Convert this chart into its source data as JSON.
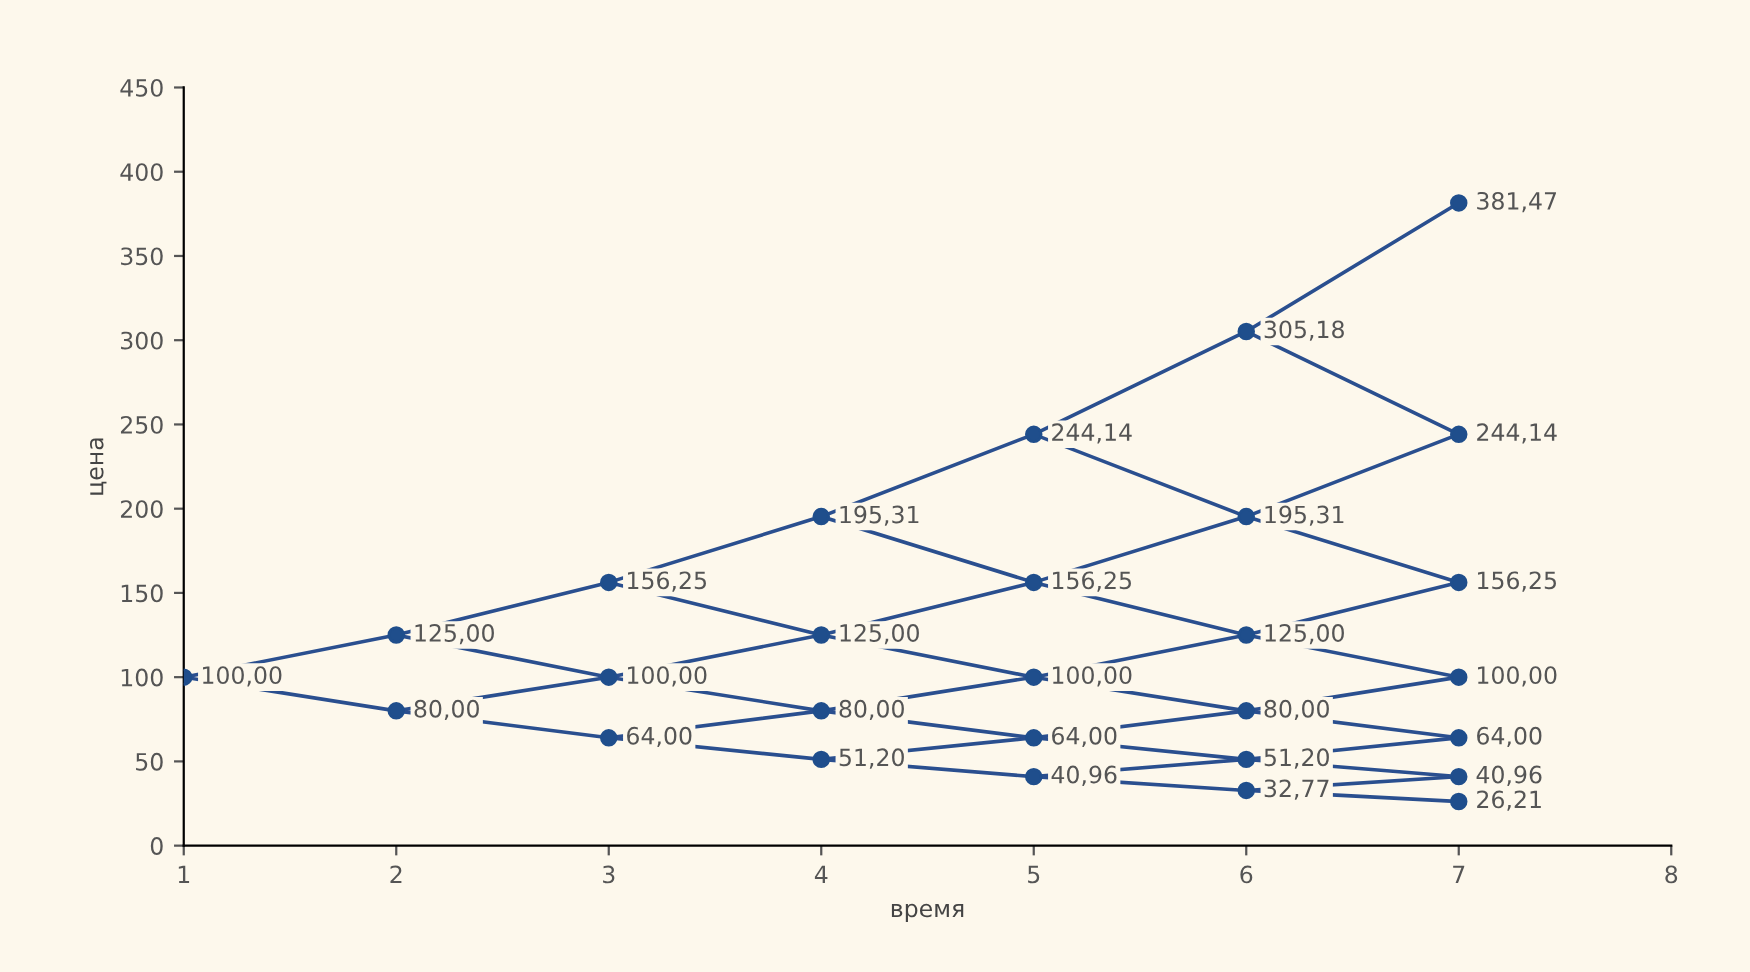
{
  "chart_data": {
    "type": "line",
    "xlabel": "время",
    "ylabel": "цена",
    "xlim": [
      1,
      8
    ],
    "xticks": [
      1,
      2,
      3,
      4,
      5,
      6,
      7,
      8
    ],
    "ylim": [
      0,
      450
    ],
    "yticks": [
      0,
      50,
      100,
      150,
      200,
      250,
      300,
      350,
      400,
      450
    ],
    "grid": false,
    "legend": false,
    "line_style": "solid",
    "marker": "none",
    "series": [
      {
        "color": "#2a4f8f",
        "x": [
          1,
          2,
          3,
          4,
          5,
          6,
          7
        ],
        "values": [
          100,
          125,
          156.25,
          195.31,
          244.14,
          305.18,
          381.47
        ]
      },
      {
        "color": "#2a4f8f",
        "x": [
          2,
          3,
          4,
          5,
          6,
          7
        ],
        "values": [
          80,
          100,
          125,
          156.25,
          195.31,
          244.14
        ]
      },
      {
        "color": "#2a4f8f",
        "x": [
          3,
          4,
          5,
          6,
          7
        ],
        "values": [
          64,
          80,
          100,
          125,
          156.25
        ]
      },
      {
        "color": "#2a4f8f",
        "x": [
          4,
          5,
          6,
          7
        ],
        "values": [
          51.2,
          64,
          80,
          100
        ]
      },
      {
        "color": "#2a4f8f",
        "x": [
          5,
          6,
          7
        ],
        "values": [
          40.96,
          51.2,
          64
        ]
      },
      {
        "color": "#2a4f8f",
        "x": [
          6,
          7
        ],
        "values": [
          32.77,
          40.96
        ]
      },
      {
        "color": "#2a4f8f",
        "x": [
          1,
          2,
          3,
          4,
          5,
          6,
          7
        ],
        "values": [
          100,
          80,
          64,
          51.2,
          40.96,
          32.77,
          26.21
        ]
      },
      {
        "color": "#2a4f8f",
        "x": [
          2,
          3,
          4,
          5,
          6,
          7
        ],
        "values": [
          125,
          100,
          80,
          64,
          51.2,
          40.96
        ]
      },
      {
        "color": "#2a4f8f",
        "x": [
          3,
          4,
          5,
          6,
          7
        ],
        "values": [
          156.25,
          125,
          100,
          80,
          64
        ]
      },
      {
        "color": "#2a4f8f",
        "x": [
          4,
          5,
          6,
          7
        ],
        "values": [
          195.31,
          156.25,
          125,
          100
        ]
      },
      {
        "color": "#2a4f8f",
        "x": [
          5,
          6,
          7
        ],
        "values": [
          244.14,
          195.31,
          156.25
        ]
      },
      {
        "color": "#2a4f8f",
        "x": [
          6,
          7
        ],
        "values": [
          305.18,
          244.14
        ]
      },
      {
        "type": "scatter",
        "marker": "circle",
        "color": "#1f4e8c",
        "x": [
          1,
          2,
          2,
          3,
          3,
          3,
          4,
          4,
          4,
          4,
          5,
          5,
          5,
          5,
          5,
          6,
          6,
          6,
          6,
          6,
          6,
          7,
          7,
          7,
          7,
          7,
          7,
          7
        ],
        "values": [
          100,
          125,
          80,
          156.25,
          100,
          64,
          195.31,
          125,
          80,
          51.2,
          244.14,
          156.25,
          100,
          64,
          40.96,
          305.18,
          195.31,
          125,
          80,
          51.2,
          32.77,
          381.47,
          244.14,
          156.25,
          100,
          64,
          40.96,
          26.21
        ],
        "value_labels": [
          "100,00",
          "125,00",
          "80,00",
          "156,25",
          "100,00",
          "64,00",
          "195,31",
          "125,00",
          "80,00",
          "51,20",
          "244,14",
          "156,25",
          "100,00",
          "64,00",
          "40,96",
          "305,18",
          "195,31",
          "125,00",
          "80,00",
          "51,20",
          "32,77",
          "381,47",
          "244,14",
          "156,25",
          "100,00",
          "64,00",
          "40,96",
          "26,21"
        ]
      }
    ]
  }
}
